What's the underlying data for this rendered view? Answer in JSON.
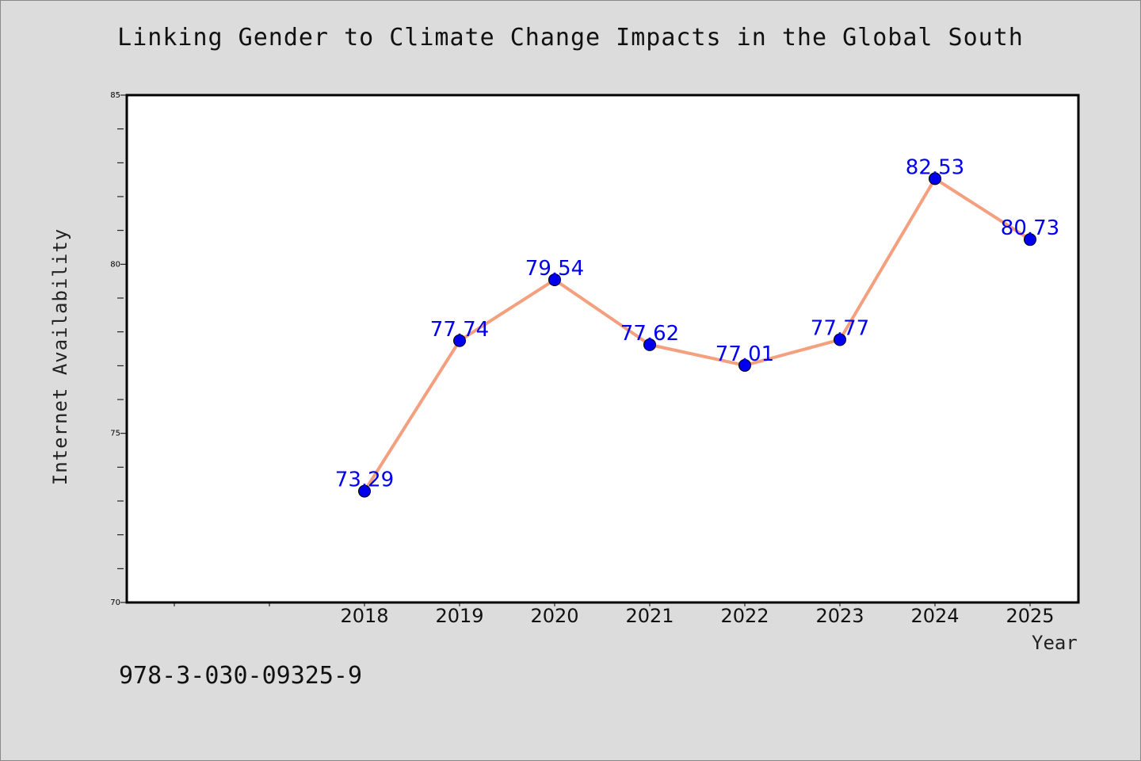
{
  "chart_data": {
    "type": "line",
    "title": "Linking Gender to Climate Change Impacts in the Global South",
    "xlabel": "Year",
    "ylabel": "Internet Availability",
    "categories": [
      "2018",
      "2019",
      "2020",
      "2021",
      "2022",
      "2023",
      "2024",
      "2025"
    ],
    "values": [
      73.29,
      77.74,
      79.54,
      77.62,
      77.01,
      77.77,
      82.53,
      80.73
    ],
    "value_labels": [
      "73.29",
      "77.74",
      "79.54",
      "77.62",
      "77.01",
      "77.77",
      "82.53",
      "80.73"
    ],
    "ylim": [
      70,
      85
    ],
    "yticks": [
      "70",
      "75",
      "80",
      "85"
    ],
    "grid": false,
    "legend": "none",
    "line_color": "#f4a07e",
    "marker_color": "#0000ee",
    "label_color": "#0000ee"
  },
  "footnote": "978-3-030-09325-9"
}
